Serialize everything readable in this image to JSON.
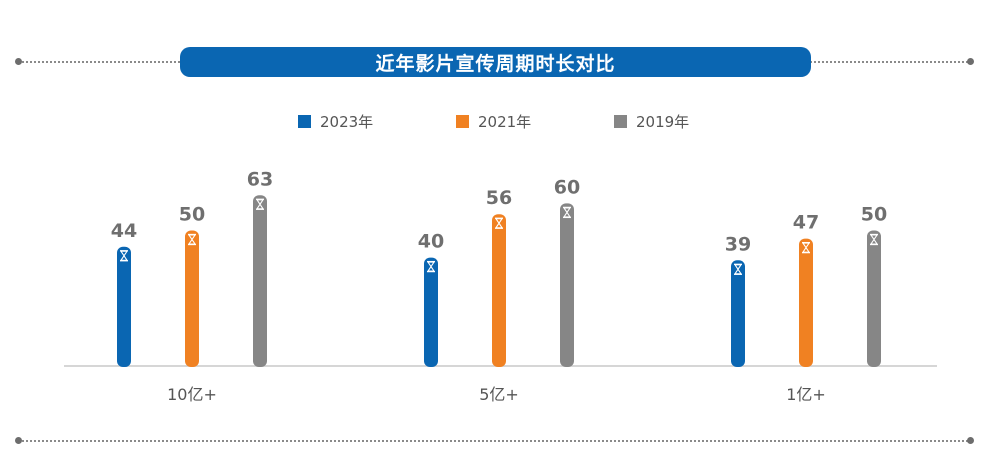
{
  "title": "近年影片宣传周期时长对比",
  "colors": {
    "title_bg": "#0a66b2",
    "baseline": "#c9c9c9"
  },
  "chart_data": {
    "type": "bar",
    "title": "近年影片宣传周期时长对比",
    "categories": [
      "10亿+",
      "5亿+",
      "1亿+"
    ],
    "series": [
      {
        "name": "2023年",
        "color": "#0a66b2",
        "values": [
          44,
          40,
          39
        ]
      },
      {
        "name": "2021年",
        "color": "#f08122",
        "values": [
          50,
          56,
          47
        ]
      },
      {
        "name": "2019年",
        "color": "#868686",
        "values": [
          63,
          60,
          50
        ]
      }
    ],
    "ylim": [
      0,
      65
    ],
    "grid": false,
    "legend_position": "top",
    "bar_icon": "hourglass-icon"
  }
}
